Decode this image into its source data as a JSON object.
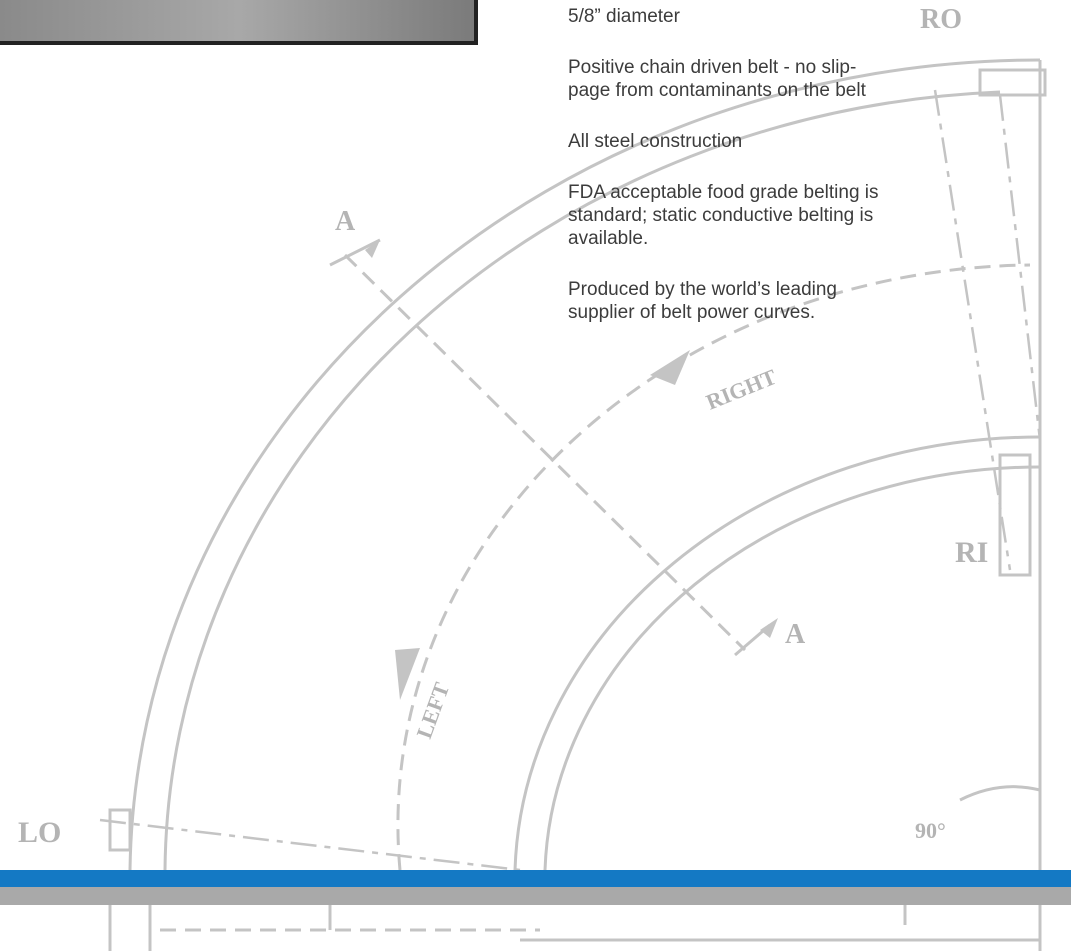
{
  "features": [
    {
      "lines": [
        "5/8”  diameter"
      ]
    },
    {
      "lines": [
        "Positive chain driven belt - no slip-",
        "page from contaminants on the belt"
      ]
    },
    {
      "lines": [
        "All steel construction"
      ]
    },
    {
      "lines": [
        "FDA acceptable food grade belting is",
        "standard; static conductive belting is",
        "available."
      ]
    },
    {
      "lines": [
        "Produced by the world’s leading",
        "supplier of belt power curves."
      ]
    }
  ],
  "drawing": {
    "outer_right": "RO",
    "inner_right": "RI",
    "outer_left": "LO",
    "section_top": "A",
    "section_bottom": "A",
    "direction_right": "RIGHT",
    "direction_left": "LEFT",
    "angle": "90°"
  }
}
